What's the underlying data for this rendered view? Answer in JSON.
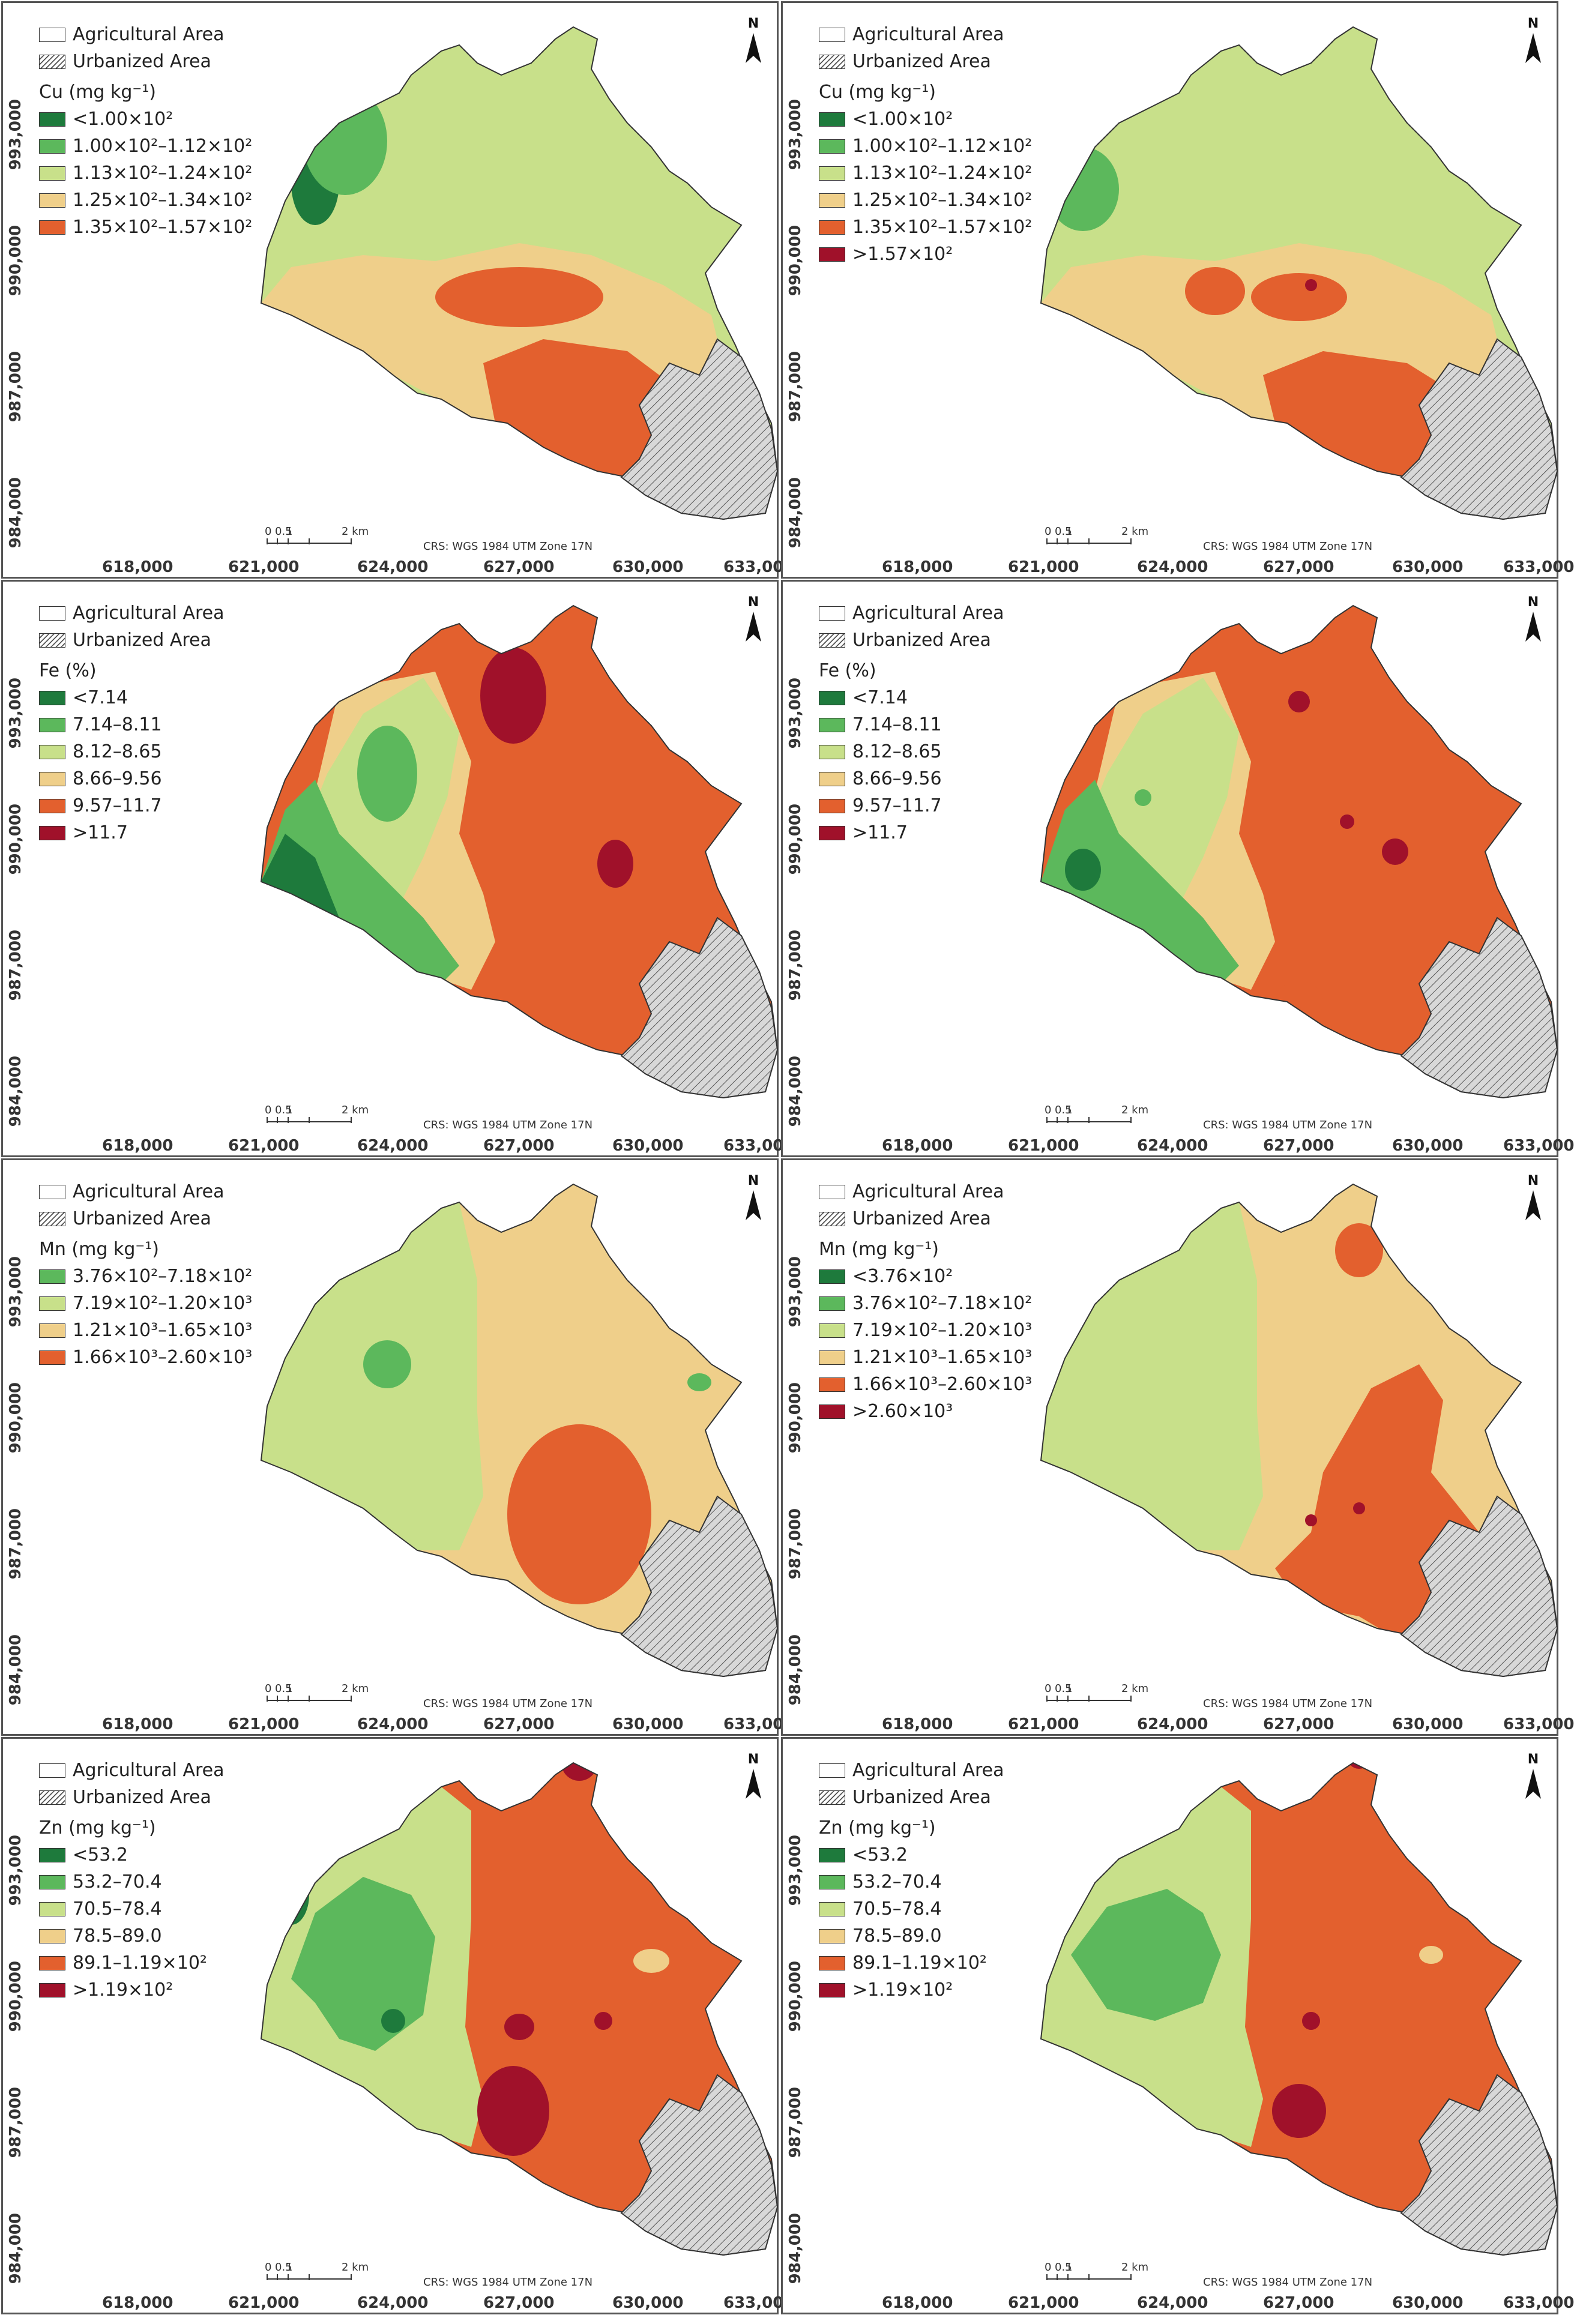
{
  "common": {
    "agri_label": "Agricultural Area",
    "urban_label": "Urbanized Area",
    "crs_label": "CRS: WGS 1984 UTM Zone 17N",
    "scale_ticks": [
      "0",
      "0.5",
      "1",
      "2 km"
    ],
    "north_label": "N",
    "x_ticks": [
      "618,000",
      "621,000",
      "624,000",
      "627,000",
      "630,000",
      "633,000"
    ],
    "y_ticks": [
      "993,000",
      "990,000",
      "987,000",
      "984,000"
    ]
  },
  "colors": {
    "dark_green": "#1e7a3c",
    "green": "#5cb85c",
    "light_green": "#c8e08a",
    "beige": "#efcf8a",
    "orange": "#e3602e",
    "dark_red": "#a0112a",
    "urban_fill": "#d8d8d8"
  },
  "panels": [
    {
      "title": "Cu (mg kg⁻¹)",
      "base": "light_green",
      "legend": [
        {
          "color": "dark_green",
          "label": "<1.00×10²"
        },
        {
          "color": "green",
          "label": "1.00×10²–1.12×10²"
        },
        {
          "color": "light_green",
          "label": "1.13×10²–1.24×10²"
        },
        {
          "color": "beige",
          "label": "1.25×10²–1.34×10²"
        },
        {
          "color": "orange",
          "label": "1.35×10²–1.57×10²"
        }
      ]
    },
    {
      "title": "Cu (mg kg⁻¹)",
      "base": "light_green",
      "legend": [
        {
          "color": "dark_green",
          "label": "<1.00×10²"
        },
        {
          "color": "green",
          "label": "1.00×10²–1.12×10²"
        },
        {
          "color": "light_green",
          "label": "1.13×10²–1.24×10²"
        },
        {
          "color": "beige",
          "label": "1.25×10²–1.34×10²"
        },
        {
          "color": "orange",
          "label": "1.35×10²–1.57×10²"
        },
        {
          "color": "dark_red",
          "label": ">1.57×10²"
        }
      ]
    },
    {
      "title": "Fe (%)",
      "base": "orange",
      "legend": [
        {
          "color": "dark_green",
          "label": "<7.14"
        },
        {
          "color": "green",
          "label": "7.14–8.11"
        },
        {
          "color": "light_green",
          "label": "8.12–8.65"
        },
        {
          "color": "beige",
          "label": "8.66–9.56"
        },
        {
          "color": "orange",
          "label": "9.57–11.7"
        },
        {
          "color": "dark_red",
          "label": ">11.7"
        }
      ]
    },
    {
      "title": "Fe (%)",
      "base": "orange",
      "legend": [
        {
          "color": "dark_green",
          "label": "<7.14"
        },
        {
          "color": "green",
          "label": "7.14–8.11"
        },
        {
          "color": "light_green",
          "label": "8.12–8.65"
        },
        {
          "color": "beige",
          "label": "8.66–9.56"
        },
        {
          "color": "orange",
          "label": "9.57–11.7"
        },
        {
          "color": "dark_red",
          "label": ">11.7"
        }
      ]
    },
    {
      "title": "Mn (mg kg⁻¹)",
      "base": "beige",
      "legend": [
        {
          "color": "green",
          "label": "3.76×10²–7.18×10²"
        },
        {
          "color": "light_green",
          "label": "7.19×10²–1.20×10³"
        },
        {
          "color": "beige",
          "label": "1.21×10³–1.65×10³"
        },
        {
          "color": "orange",
          "label": "1.66×10³–2.60×10³"
        }
      ]
    },
    {
      "title": "Mn (mg kg⁻¹)",
      "base": "beige",
      "legend": [
        {
          "color": "dark_green",
          "label": "<3.76×10²"
        },
        {
          "color": "green",
          "label": "3.76×10²–7.18×10²"
        },
        {
          "color": "light_green",
          "label": "7.19×10²–1.20×10³"
        },
        {
          "color": "beige",
          "label": "1.21×10³–1.65×10³"
        },
        {
          "color": "orange",
          "label": "1.66×10³–2.60×10³"
        },
        {
          "color": "dark_red",
          "label": ">2.60×10³"
        }
      ]
    },
    {
      "title": "Zn (mg kg⁻¹)",
      "base": "orange",
      "legend": [
        {
          "color": "dark_green",
          "label": "<53.2"
        },
        {
          "color": "green",
          "label": "53.2–70.4"
        },
        {
          "color": "light_green",
          "label": "70.5–78.4"
        },
        {
          "color": "beige",
          "label": "78.5–89.0"
        },
        {
          "color": "orange",
          "label": "89.1–1.19×10²"
        },
        {
          "color": "dark_red",
          "label": ">1.19×10²"
        }
      ]
    },
    {
      "title": "Zn (mg kg⁻¹)",
      "base": "orange",
      "legend": [
        {
          "color": "dark_green",
          "label": "<53.2"
        },
        {
          "color": "green",
          "label": "53.2–70.4"
        },
        {
          "color": "light_green",
          "label": "70.5–78.4"
        },
        {
          "color": "beige",
          "label": "78.5–89.0"
        },
        {
          "color": "orange",
          "label": "89.1–1.19×10²"
        },
        {
          "color": "dark_red",
          "label": ">1.19×10²"
        }
      ]
    }
  ]
}
